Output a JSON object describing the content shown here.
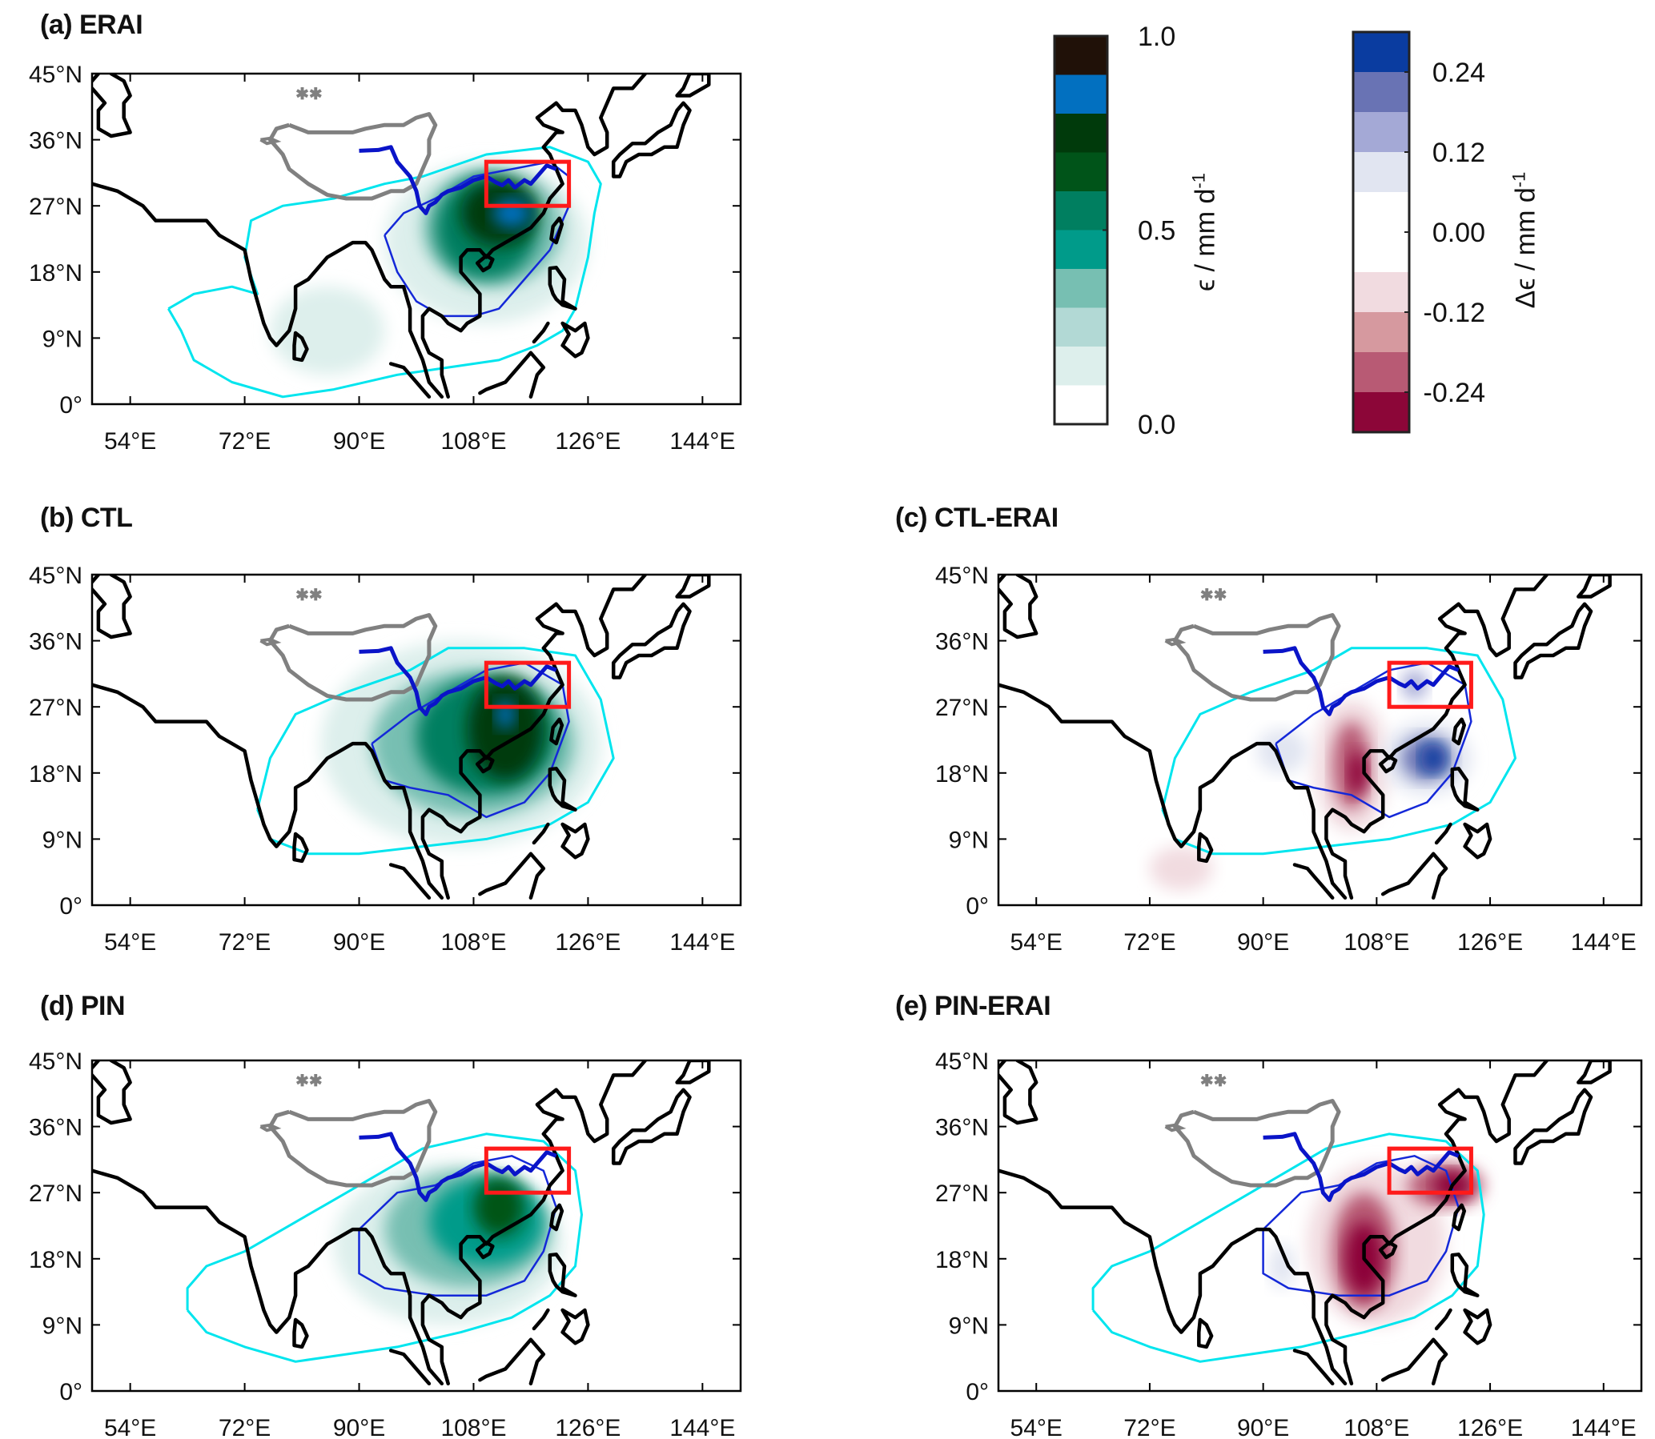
{
  "chart_data": {
    "type": "heatmap",
    "description": "Filled contour maps over South/East Asia with coastlines, Tibetan Plateau outline (grey), Yangtze river (dark blue), region box (red), cyan and blue reference contours",
    "axes": {
      "lon_range": [
        48,
        150
      ],
      "lat_range": [
        0,
        45
      ],
      "xticks": [
        54,
        72,
        90,
        108,
        126,
        144
      ],
      "xtick_labels": [
        "54°E",
        "72°E",
        "90°E",
        "108°E",
        "126°E",
        "144°E"
      ],
      "yticks": [
        0,
        9,
        18,
        27,
        36,
        45
      ],
      "ytick_labels": [
        "0°",
        "9°N",
        "18°N",
        "27°N",
        "36°N",
        "45°N"
      ]
    },
    "region_box": {
      "lon": [
        110,
        123
      ],
      "lat": [
        27,
        33
      ],
      "color": "#ff1a1a"
    },
    "line_colors": {
      "coast": "#000000",
      "plateau": "#808080",
      "river": "#0a14c8",
      "contour_outer": "#00e5ee",
      "contour_inner": "#1428d8"
    },
    "panels": [
      {
        "id": "a",
        "title": "(a) ERAI",
        "field": "epsilon",
        "colorbar": "abs",
        "blobs": [
          {
            "lon": 110,
            "lat": 22,
            "rx": 16,
            "ry": 11,
            "value": 0.15
          },
          {
            "lon": 85,
            "lat": 10,
            "rx": 9,
            "ry": 6,
            "value": 0.12
          },
          {
            "lon": 111,
            "lat": 24,
            "rx": 11,
            "ry": 8,
            "value": 0.35
          },
          {
            "lon": 110,
            "lat": 24,
            "rx": 8,
            "ry": 7,
            "value": 0.55
          },
          {
            "lon": 112,
            "lat": 26,
            "rx": 6,
            "ry": 4.5,
            "value": 0.7
          },
          {
            "lon": 114,
            "lat": 26,
            "rx": 3,
            "ry": 2,
            "value": 0.85
          }
        ]
      },
      {
        "id": "b",
        "title": "(b) CTL",
        "field": "epsilon",
        "colorbar": "abs",
        "blobs": [
          {
            "lon": 106,
            "lat": 22,
            "rx": 22,
            "ry": 14,
            "value": 0.12
          },
          {
            "lon": 108,
            "lat": 22,
            "rx": 16,
            "ry": 10,
            "value": 0.3
          },
          {
            "lon": 110,
            "lat": 23,
            "rx": 11,
            "ry": 8,
            "value": 0.5
          },
          {
            "lon": 113,
            "lat": 24,
            "rx": 6,
            "ry": 7,
            "value": 0.7
          },
          {
            "lon": 113,
            "lat": 26,
            "rx": 1.5,
            "ry": 2,
            "value": 0.85
          }
        ]
      },
      {
        "id": "c",
        "title": "(c) CTL-ERAI",
        "field": "delta_epsilon",
        "colorbar": "diff",
        "blobs": [
          {
            "lon": 104,
            "lat": 19,
            "rx": 6,
            "ry": 9,
            "value": -0.1
          },
          {
            "lon": 104,
            "lat": 19,
            "rx": 3,
            "ry": 6,
            "value": -0.2
          },
          {
            "lon": 105,
            "lat": 18,
            "rx": 1.5,
            "ry": 3,
            "value": -0.3
          },
          {
            "lon": 116,
            "lat": 20,
            "rx": 7,
            "ry": 5,
            "value": 0.1
          },
          {
            "lon": 116,
            "lat": 20,
            "rx": 4,
            "ry": 3,
            "value": 0.2
          },
          {
            "lon": 117,
            "lat": 20,
            "rx": 2,
            "ry": 2,
            "value": 0.3
          },
          {
            "lon": 77,
            "lat": 5,
            "rx": 5,
            "ry": 3,
            "value": -0.08
          },
          {
            "lon": 93,
            "lat": 21,
            "rx": 4,
            "ry": 3,
            "value": 0.1
          },
          {
            "lon": 114,
            "lat": 30,
            "rx": 2,
            "ry": 2,
            "value": 0.12
          }
        ]
      },
      {
        "id": "d",
        "title": "(d) PIN",
        "field": "epsilon",
        "colorbar": "abs",
        "blobs": [
          {
            "lon": 104,
            "lat": 20,
            "rx": 18,
            "ry": 11,
            "value": 0.12
          },
          {
            "lon": 107,
            "lat": 22,
            "rx": 13,
            "ry": 8,
            "value": 0.3
          },
          {
            "lon": 110,
            "lat": 23,
            "rx": 9,
            "ry": 6,
            "value": 0.45
          },
          {
            "lon": 112,
            "lat": 25,
            "rx": 4,
            "ry": 4,
            "value": 0.65
          }
        ]
      },
      {
        "id": "e",
        "title": "(e) PIN-ERAI",
        "field": "delta_epsilon",
        "colorbar": "diff",
        "blobs": [
          {
            "lon": 108,
            "lat": 20,
            "rx": 11,
            "ry": 11,
            "value": -0.1
          },
          {
            "lon": 106,
            "lat": 19,
            "rx": 5,
            "ry": 8,
            "value": -0.2
          },
          {
            "lon": 106,
            "lat": 18,
            "rx": 3,
            "ry": 5,
            "value": -0.3
          },
          {
            "lon": 119,
            "lat": 28,
            "rx": 6,
            "ry": 3,
            "value": -0.2
          },
          {
            "lon": 120,
            "lat": 28,
            "rx": 3,
            "ry": 2,
            "value": -0.3
          },
          {
            "lon": 93,
            "lat": 17,
            "rx": 2,
            "ry": 3,
            "value": 0.08
          }
        ]
      }
    ],
    "colorbars": {
      "abs": {
        "label": "ϵ / mm d",
        "label_sup": "-1",
        "range": [
          0,
          1.0
        ],
        "tick_labels": [
          "1.0",
          "0.5",
          "0.0"
        ],
        "ticks": [
          1.0,
          0.5,
          0.0
        ],
        "levels": [
          0.0,
          0.1,
          0.2,
          0.3,
          0.4,
          0.5,
          0.6,
          0.7,
          0.8,
          0.9,
          1.0
        ],
        "colors": [
          "#ffffff",
          "#ddefec",
          "#b2d9d5",
          "#77bfb2",
          "#009b8a",
          "#007f60",
          "#005419",
          "#003a0b",
          "#0270c0",
          "#201108"
        ]
      },
      "diff": {
        "label": "Δϵ / mm d",
        "label_sup": "-1",
        "range": [
          -0.3,
          0.3
        ],
        "tick_labels": [
          "0.24",
          "0.12",
          "0.00",
          "-0.12",
          "-0.24"
        ],
        "ticks": [
          0.24,
          0.12,
          0.0,
          -0.12,
          -0.24
        ],
        "levels": [
          -0.3,
          -0.24,
          -0.18,
          -0.12,
          -0.06,
          0.06,
          0.12,
          0.18,
          0.24,
          0.3
        ],
        "colors": [
          "#8c0638",
          "#b85a74",
          "#d6999f",
          "#f1dbe0",
          "#ffffff",
          "#e1e5f1",
          "#a4a9d6",
          "#6973b4",
          "#0a3ca0"
        ]
      }
    }
  }
}
